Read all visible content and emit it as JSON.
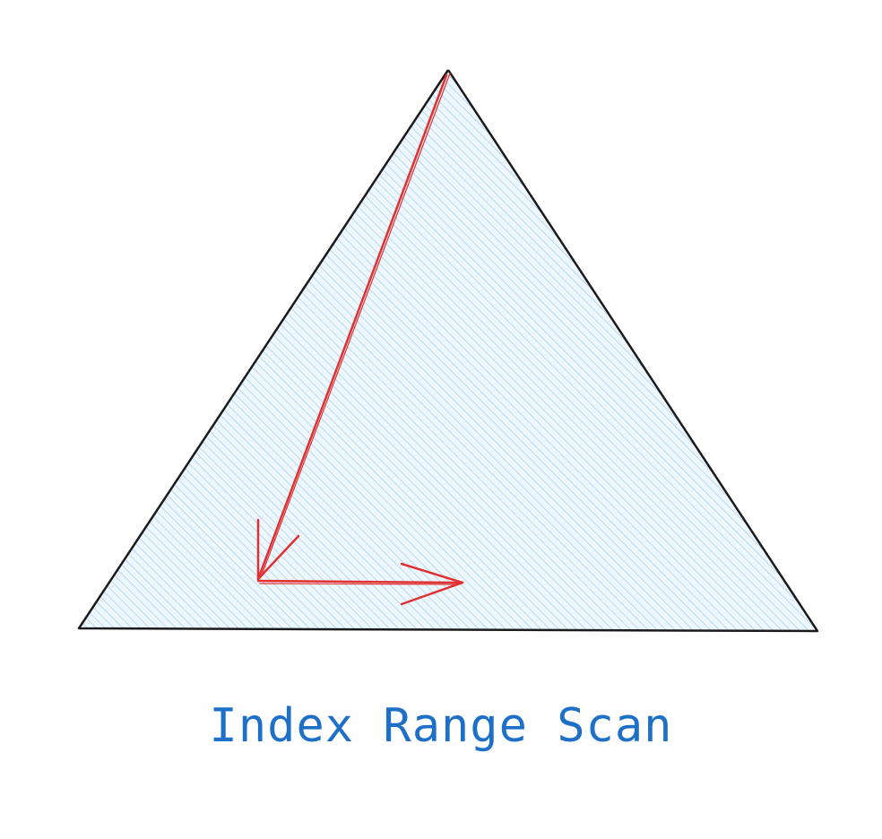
{
  "caption": "Index Range Scan",
  "colors": {
    "outline": "#1b1b1b",
    "hatch": "#a9d3f5",
    "fill": "#eef7fe",
    "arrow": "#e03131",
    "caption": "#1e6fc8"
  },
  "icons": {
    "triangle": "index-tree-triangle",
    "descent_arrow": "arrow-down-left",
    "scan_arrow": "arrow-right"
  }
}
